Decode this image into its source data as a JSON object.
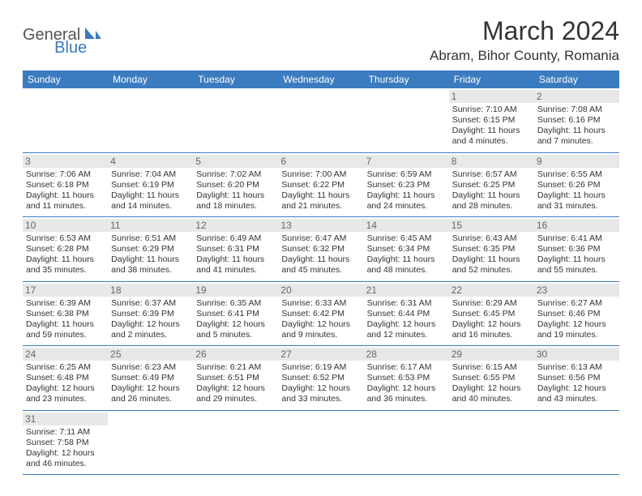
{
  "logo": {
    "part1": "General",
    "part2": "Blue"
  },
  "title": "March 2024",
  "location": "Abram, Bihor County, Romania",
  "colors": {
    "header_bg": "#3b7bbf",
    "header_text": "#ffffff",
    "daynum_bg": "#e8e8e8",
    "border": "#3b7bbf",
    "text": "#333333",
    "logo_gray": "#555555",
    "logo_blue": "#3b7bbf",
    "background": "#ffffff"
  },
  "weekdays": [
    "Sunday",
    "Monday",
    "Tuesday",
    "Wednesday",
    "Thursday",
    "Friday",
    "Saturday"
  ],
  "weeks": [
    [
      null,
      null,
      null,
      null,
      null,
      {
        "n": "1",
        "sr": "7:10 AM",
        "ss": "6:15 PM",
        "dh": "11",
        "dm": "4"
      },
      {
        "n": "2",
        "sr": "7:08 AM",
        "ss": "6:16 PM",
        "dh": "11",
        "dm": "7"
      }
    ],
    [
      {
        "n": "3",
        "sr": "7:06 AM",
        "ss": "6:18 PM",
        "dh": "11",
        "dm": "11"
      },
      {
        "n": "4",
        "sr": "7:04 AM",
        "ss": "6:19 PM",
        "dh": "11",
        "dm": "14"
      },
      {
        "n": "5",
        "sr": "7:02 AM",
        "ss": "6:20 PM",
        "dh": "11",
        "dm": "18"
      },
      {
        "n": "6",
        "sr": "7:00 AM",
        "ss": "6:22 PM",
        "dh": "11",
        "dm": "21"
      },
      {
        "n": "7",
        "sr": "6:59 AM",
        "ss": "6:23 PM",
        "dh": "11",
        "dm": "24"
      },
      {
        "n": "8",
        "sr": "6:57 AM",
        "ss": "6:25 PM",
        "dh": "11",
        "dm": "28"
      },
      {
        "n": "9",
        "sr": "6:55 AM",
        "ss": "6:26 PM",
        "dh": "11",
        "dm": "31"
      }
    ],
    [
      {
        "n": "10",
        "sr": "6:53 AM",
        "ss": "6:28 PM",
        "dh": "11",
        "dm": "35"
      },
      {
        "n": "11",
        "sr": "6:51 AM",
        "ss": "6:29 PM",
        "dh": "11",
        "dm": "38"
      },
      {
        "n": "12",
        "sr": "6:49 AM",
        "ss": "6:31 PM",
        "dh": "11",
        "dm": "41"
      },
      {
        "n": "13",
        "sr": "6:47 AM",
        "ss": "6:32 PM",
        "dh": "11",
        "dm": "45"
      },
      {
        "n": "14",
        "sr": "6:45 AM",
        "ss": "6:34 PM",
        "dh": "11",
        "dm": "48"
      },
      {
        "n": "15",
        "sr": "6:43 AM",
        "ss": "6:35 PM",
        "dh": "11",
        "dm": "52"
      },
      {
        "n": "16",
        "sr": "6:41 AM",
        "ss": "6:36 PM",
        "dh": "11",
        "dm": "55"
      }
    ],
    [
      {
        "n": "17",
        "sr": "6:39 AM",
        "ss": "6:38 PM",
        "dh": "11",
        "dm": "59"
      },
      {
        "n": "18",
        "sr": "6:37 AM",
        "ss": "6:39 PM",
        "dh": "12",
        "dm": "2"
      },
      {
        "n": "19",
        "sr": "6:35 AM",
        "ss": "6:41 PM",
        "dh": "12",
        "dm": "5"
      },
      {
        "n": "20",
        "sr": "6:33 AM",
        "ss": "6:42 PM",
        "dh": "12",
        "dm": "9"
      },
      {
        "n": "21",
        "sr": "6:31 AM",
        "ss": "6:44 PM",
        "dh": "12",
        "dm": "12"
      },
      {
        "n": "22",
        "sr": "6:29 AM",
        "ss": "6:45 PM",
        "dh": "12",
        "dm": "16"
      },
      {
        "n": "23",
        "sr": "6:27 AM",
        "ss": "6:46 PM",
        "dh": "12",
        "dm": "19"
      }
    ],
    [
      {
        "n": "24",
        "sr": "6:25 AM",
        "ss": "6:48 PM",
        "dh": "12",
        "dm": "23"
      },
      {
        "n": "25",
        "sr": "6:23 AM",
        "ss": "6:49 PM",
        "dh": "12",
        "dm": "26"
      },
      {
        "n": "26",
        "sr": "6:21 AM",
        "ss": "6:51 PM",
        "dh": "12",
        "dm": "29"
      },
      {
        "n": "27",
        "sr": "6:19 AM",
        "ss": "6:52 PM",
        "dh": "12",
        "dm": "33"
      },
      {
        "n": "28",
        "sr": "6:17 AM",
        "ss": "6:53 PM",
        "dh": "12",
        "dm": "36"
      },
      {
        "n": "29",
        "sr": "6:15 AM",
        "ss": "6:55 PM",
        "dh": "12",
        "dm": "40"
      },
      {
        "n": "30",
        "sr": "6:13 AM",
        "ss": "6:56 PM",
        "dh": "12",
        "dm": "43"
      }
    ],
    [
      {
        "n": "31",
        "sr": "7:11 AM",
        "ss": "7:58 PM",
        "dh": "12",
        "dm": "46"
      },
      null,
      null,
      null,
      null,
      null,
      null
    ]
  ],
  "labels": {
    "sunrise": "Sunrise:",
    "sunset": "Sunset:",
    "daylight": "Daylight:",
    "hours": "hours",
    "and": "and",
    "minutes": "minutes."
  }
}
